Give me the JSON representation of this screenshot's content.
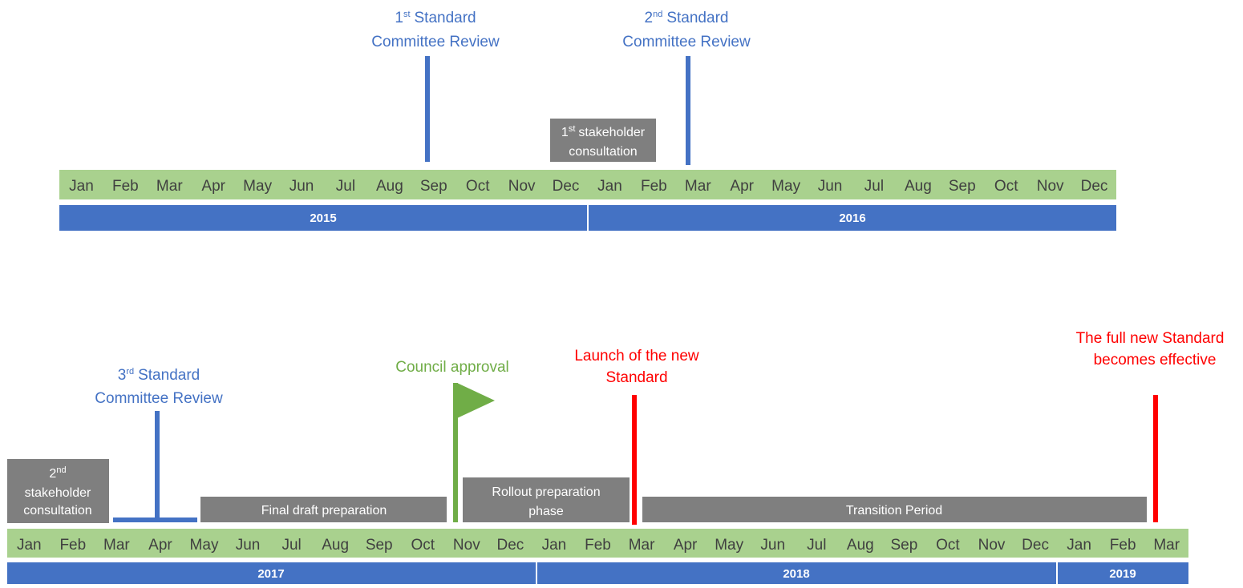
{
  "timeline_2015_2016": {
    "months": [
      "Jan",
      "Feb",
      "Mar",
      "Apr",
      "May",
      "Jun",
      "Jul",
      "Aug",
      "Sep",
      "Oct",
      "Nov",
      "Dec",
      "Jan",
      "Feb",
      "Mar",
      "Apr",
      "May",
      "Jun",
      "Jul",
      "Aug",
      "Sep",
      "Oct",
      "Nov",
      "Dec"
    ],
    "years": [
      "2015",
      "2016"
    ],
    "milestones": [
      {
        "number": "1",
        "suffix": "st",
        "line1": "Standard",
        "line2": "Committee Review"
      },
      {
        "number": "2",
        "suffix": "nd",
        "line1": "Standard",
        "line2": "Committee Review"
      }
    ],
    "phases": [
      {
        "number": "1",
        "suffix": "st",
        "line1": "stakeholder",
        "line2": "consultation"
      }
    ]
  },
  "timeline_2017_2019": {
    "months": [
      "Jan",
      "Feb",
      "Mar",
      "Apr",
      "May",
      "Jun",
      "Jul",
      "Aug",
      "Sep",
      "Oct",
      "Nov",
      "Dec",
      "Jan",
      "Feb",
      "Mar",
      "Apr",
      "May",
      "Jun",
      "Jul",
      "Aug",
      "Sep",
      "Oct",
      "Nov",
      "Dec",
      "Jan",
      "Feb",
      "Mar"
    ],
    "years": [
      "2017",
      "2018",
      "2019"
    ],
    "milestones": [
      {
        "number": "3",
        "suffix": "rd",
        "line1": "Standard",
        "line2": "Committee Review"
      },
      {
        "label": "Council approval"
      },
      {
        "line1": "Launch of the new",
        "line2": "Standard"
      },
      {
        "line1": "The full new Standard",
        "line2": "becomes effective"
      }
    ],
    "phases": [
      {
        "number": "2",
        "suffix": "nd",
        "line1": "stakeholder",
        "line2": "consultation"
      },
      {
        "label": "Final draft preparation"
      },
      {
        "line1": "Rollout preparation",
        "line2": "phase"
      },
      {
        "label": "Transition Period"
      }
    ]
  }
}
